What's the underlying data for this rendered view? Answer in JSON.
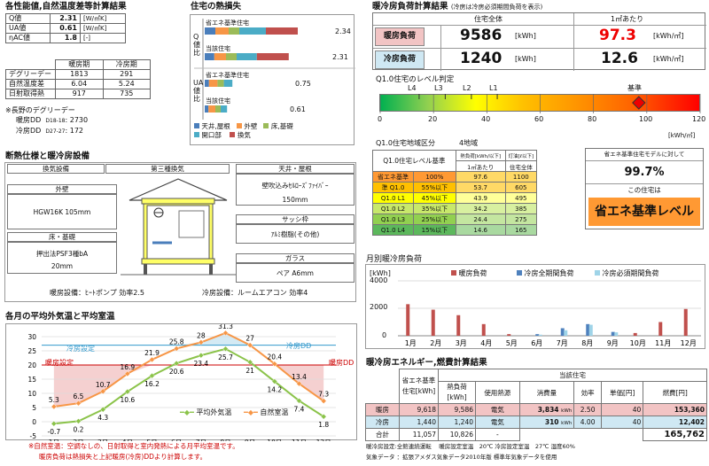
{
  "colors": {
    "heating_red": "#c0504d",
    "cooling_blue": "#4f81bd",
    "roof_blue": "#4a7ebb",
    "wall_orange": "#f79646",
    "floor_green": "#9bbb59",
    "opening_cyan": "#4bacc6",
    "vent_red": "#c0504d",
    "lime": "#92d050",
    "yellow": "#ffff00",
    "orange": "#ff9933",
    "heat_pink": "#f2c4c4",
    "cool_lightblue": "#cfe8f3",
    "house_yellow": "#ffff66"
  },
  "perf": {
    "title": "各性能値,自然温度差等計算結果",
    "rows": [
      {
        "label": "Q値",
        "value": "2.31",
        "unit": "[W/㎡K]"
      },
      {
        "label": "UA値",
        "value": "0.61",
        "unit": "[W/㎡K]"
      },
      {
        "label": "ηAC値",
        "value": "1.8",
        "unit": "[-]"
      }
    ]
  },
  "period": {
    "col_heat": "暖房期",
    "col_cool": "冷房期",
    "rows": [
      {
        "label": "デグリーデー",
        "heat": "1813",
        "cool": "291"
      },
      {
        "label": "自然温度差",
        "heat": "6.04",
        "cool": "5.24"
      },
      {
        "label": "日射取得熱",
        "heat": "917",
        "cool": "735"
      }
    ],
    "note": "※長野のデグリーデー",
    "dd_heat_label": "暖房DD",
    "dd_heat_sub": "D18-18",
    "dd_heat_val": ": 2730",
    "dd_cool_label": "冷房DD",
    "dd_cool_sub": "D27-27",
    "dd_cool_val": ": 172"
  },
  "heatloss": {
    "title": "住宅の熱損失",
    "q_axis": "Q値比",
    "ua_axis": "UA値比",
    "bars": [
      {
        "label": "省エネ基準住宅",
        "value": "2.34",
        "parts": [
          0.2,
          0.25,
          0.2,
          0.5,
          0.6
        ]
      },
      {
        "label": "当該住宅",
        "value": "2.31",
        "parts": [
          0.18,
          0.22,
          0.2,
          0.38,
          0.6
        ]
      },
      {
        "label": "省エネ基準住宅",
        "value": "0.75",
        "parts": [
          0.08,
          0.16,
          0.12,
          0.16,
          0
        ]
      },
      {
        "label": "当該住宅",
        "value": "0.61",
        "parts": [
          0.07,
          0.13,
          0.1,
          0.12,
          0
        ]
      }
    ],
    "legend": [
      "天井,屋根",
      "外壁",
      "床,基礎",
      "開口部",
      "換気"
    ]
  },
  "load": {
    "title": "暖冷房負荷計算結果",
    "subtitle": "(冷房は冷房必須期間負荷を表示)",
    "col_total": "住宅全体",
    "col_per": "1㎡あたり",
    "heat_label": "暖房負荷",
    "heat_total": "9586",
    "heat_unit": "[kWh]",
    "heat_per": "97.3",
    "heat_per_unit": "[kWh/㎡]",
    "cool_label": "冷房負荷",
    "cool_total": "1240",
    "cool_unit": "[kWh]",
    "cool_per": "12.6",
    "cool_per_unit": "[kWh/㎡]"
  },
  "q10": {
    "title": "Q1.0住宅のレベル判定",
    "levels": [
      "L4",
      "L3",
      "L2",
      "L1"
    ],
    "base": "基準",
    "marker_value": 97,
    "ticks": [
      "0",
      "20",
      "40",
      "60",
      "80",
      "100",
      "120"
    ],
    "unit": "[kWh/㎡]"
  },
  "levels": {
    "title": "Q1.0住宅地域区分",
    "region": "4地域",
    "h1": "Q1.0住宅レベル基準",
    "h2": "熱負荷[kWh/以下]",
    "h2b": "1㎡あたり",
    "h3": "灯油[ℓ以下]",
    "h3b": "住宅全体",
    "rows": [
      {
        "name": "省エネ基準",
        "pct": "100%",
        "per": "97.6",
        "kerosene": "1100"
      },
      {
        "name": "準 Q1.0",
        "pct": "55%以下",
        "per": "53.7",
        "kerosene": "605"
      },
      {
        "name": "Q1.0 L1",
        "pct": "45%以下",
        "per": "43.9",
        "kerosene": "495"
      },
      {
        "name": "Q1.0 L2",
        "pct": "35%以下",
        "per": "34.2",
        "kerosene": "385"
      },
      {
        "name": "Q1.0 L3",
        "pct": "25%以下",
        "per": "24.4",
        "kerosene": "275"
      },
      {
        "name": "Q1.0 L4",
        "pct": "15%以下",
        "per": "14.6",
        "kerosene": "165"
      }
    ]
  },
  "ratio": {
    "label": "省エネ基準住宅モデルに対して",
    "value": "99.7%",
    "sub": "この住宅は",
    "result": "省エネ基準レベル"
  },
  "spec": {
    "title": "断熱仕様と暖冷房設備",
    "vent_label": "換気設備",
    "vent_value": "第三種換気",
    "wall_label": "外壁",
    "wall_value": "HGW16K 105mm",
    "floor_label": "床・基礎",
    "floor_value": "押出法PSF3種bA",
    "floor_value2": "20mm",
    "roof_label": "天井・屋根",
    "roof_value": "壁吹込みｾﾙﾛｰｽﾞﾌｧｲﾊﾞｰ",
    "roof_value2": "150mm",
    "sash_label": "サッシ枠",
    "sash_value": "ｱﾙﾐ樹脂(その他)",
    "glass_label": "ガラス",
    "glass_value": "ペア A6mm",
    "heating": "暖房設備：ﾋｰﾄポンプ 効率2.5",
    "cooling": "冷房設備：ルームエアコン 効率4"
  },
  "temp": {
    "title": "各月の平均外気温と平均室温",
    "months": [
      "1月",
      "2月",
      "3月",
      "4月",
      "5月",
      "6月",
      "7月",
      "8月",
      "9月",
      "10月",
      "11月",
      "12月"
    ],
    "outdoor": [
      -0.7,
      0.2,
      4.3,
      10.6,
      16.2,
      20.6,
      23.4,
      25.7,
      21.0,
      14.2,
      7.4,
      1.8
    ],
    "natural": [
      5.3,
      6.5,
      10.7,
      16.9,
      21.9,
      25.8,
      28.0,
      31.3,
      27.0,
      20.4,
      13.4,
      7.3
    ],
    "ticks": [
      "30",
      "25",
      "20",
      "15",
      "10",
      "5",
      "0",
      "-5"
    ],
    "legend_out": "平均外気温",
    "legend_nat": "自然室温",
    "cool_set": "冷房設定",
    "heat_set": "暖房設定",
    "cool_dd": "冷房DD",
    "heat_dd": "暖房DD",
    "note1": "※自然室温：空調なしの、日射取得と室内発熱による月平均室温です。",
    "note2": "暖房負荷は熱損失と上記暖房(冷房)DDより計算します。"
  },
  "chart_data": {
    "type": "bar",
    "title": "月別暖冷房負荷",
    "ylabel": "[kWh]",
    "ylim": [
      0,
      4000
    ],
    "ticks": [
      "4000",
      "2000",
      "0"
    ],
    "categories": [
      "1月",
      "2月",
      "3月",
      "4月",
      "5月",
      "6月",
      "7月",
      "8月",
      "9月",
      "10月",
      "11月",
      "12月"
    ],
    "series": [
      {
        "name": "暖房負荷",
        "values": [
          2300,
          1900,
          1500,
          850,
          120,
          0,
          0,
          0,
          0,
          200,
          1000,
          1950
        ]
      },
      {
        "name": "冷房全期間負荷",
        "values": [
          0,
          0,
          0,
          0,
          0,
          120,
          550,
          850,
          280,
          0,
          0,
          0
        ]
      },
      {
        "name": "冷房必須期間負荷",
        "values": [
          0,
          0,
          0,
          0,
          0,
          80,
          400,
          800,
          250,
          0,
          0,
          0
        ]
      }
    ]
  },
  "energy": {
    "title": "暖冷房エネルギー,燃費計算結果",
    "subject": "当該住宅",
    "h_std": "省エネ基準",
    "h_std2": "住宅[kWh]",
    "h_load": "熱負荷",
    "h_load2": "[kWh]",
    "h_src": "使用熱源",
    "h_use": "消費量",
    "h_eff": "効率",
    "h_price": "単価[円]",
    "h_fuel": "燃費[円]",
    "rows": [
      {
        "label": "暖房",
        "std": "9,618",
        "load": "9,586",
        "src": "電気",
        "use": "3,834",
        "use_unit": "kWh",
        "eff": "2.50",
        "price": "40",
        "fuel": "153,360"
      },
      {
        "label": "冷房",
        "std": "1,440",
        "load": "1,240",
        "src": "電気",
        "use": "310",
        "use_unit": "kWh",
        "eff": "4.00",
        "price": "40",
        "fuel": "12,402"
      }
    ],
    "total_label": "合計",
    "total_std": "11,057",
    "total_load": "10,826",
    "total_src": "-",
    "total_fuel": "165,762",
    "foot1": "暖冷房設定:全館連続運転　 暖房設定室温　20℃ 冷房設定室温　27℃ 湿度60%",
    "foot2": "気象データ ：拡張アメダス気象データ2010年版 標準年気象データを使用"
  }
}
